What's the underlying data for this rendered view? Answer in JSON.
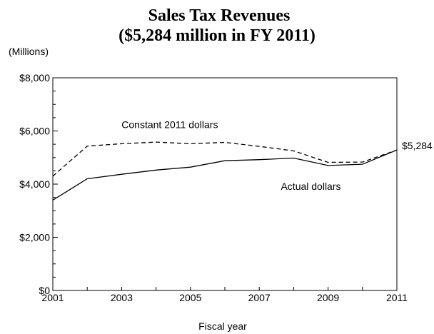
{
  "chart_data": {
    "type": "line",
    "title": "Sales Tax Revenues",
    "subtitle": "($5,284 million in FY 2011)",
    "unit_label": "(Millions)",
    "xlabel": "Fiscal year",
    "ylabel": "",
    "x": [
      2001,
      2002,
      2003,
      2004,
      2005,
      2006,
      2007,
      2008,
      2009,
      2010,
      2011
    ],
    "xticks": [
      2001,
      2003,
      2005,
      2007,
      2009,
      2011
    ],
    "xlim": [
      2001,
      2011
    ],
    "ylim": [
      0,
      8000
    ],
    "yticks": [
      0,
      2000,
      4000,
      6000,
      8000
    ],
    "ytick_labels": [
      "$0",
      "$2,000",
      "$4,000",
      "$6,000",
      "$8,000"
    ],
    "grid": false,
    "series": [
      {
        "name": "Constant 2011 dollars",
        "style": "dashed",
        "values": [
          4300,
          5430,
          5520,
          5580,
          5520,
          5570,
          5420,
          5250,
          4820,
          4830,
          5284
        ]
      },
      {
        "name": "Actual dollars",
        "style": "solid",
        "values": [
          3400,
          4200,
          4370,
          4530,
          4640,
          4880,
          4920,
          4980,
          4700,
          4750,
          5284
        ]
      }
    ],
    "annotations": [
      {
        "text": "$5,284",
        "x": 2011,
        "y": 5284
      }
    ]
  }
}
